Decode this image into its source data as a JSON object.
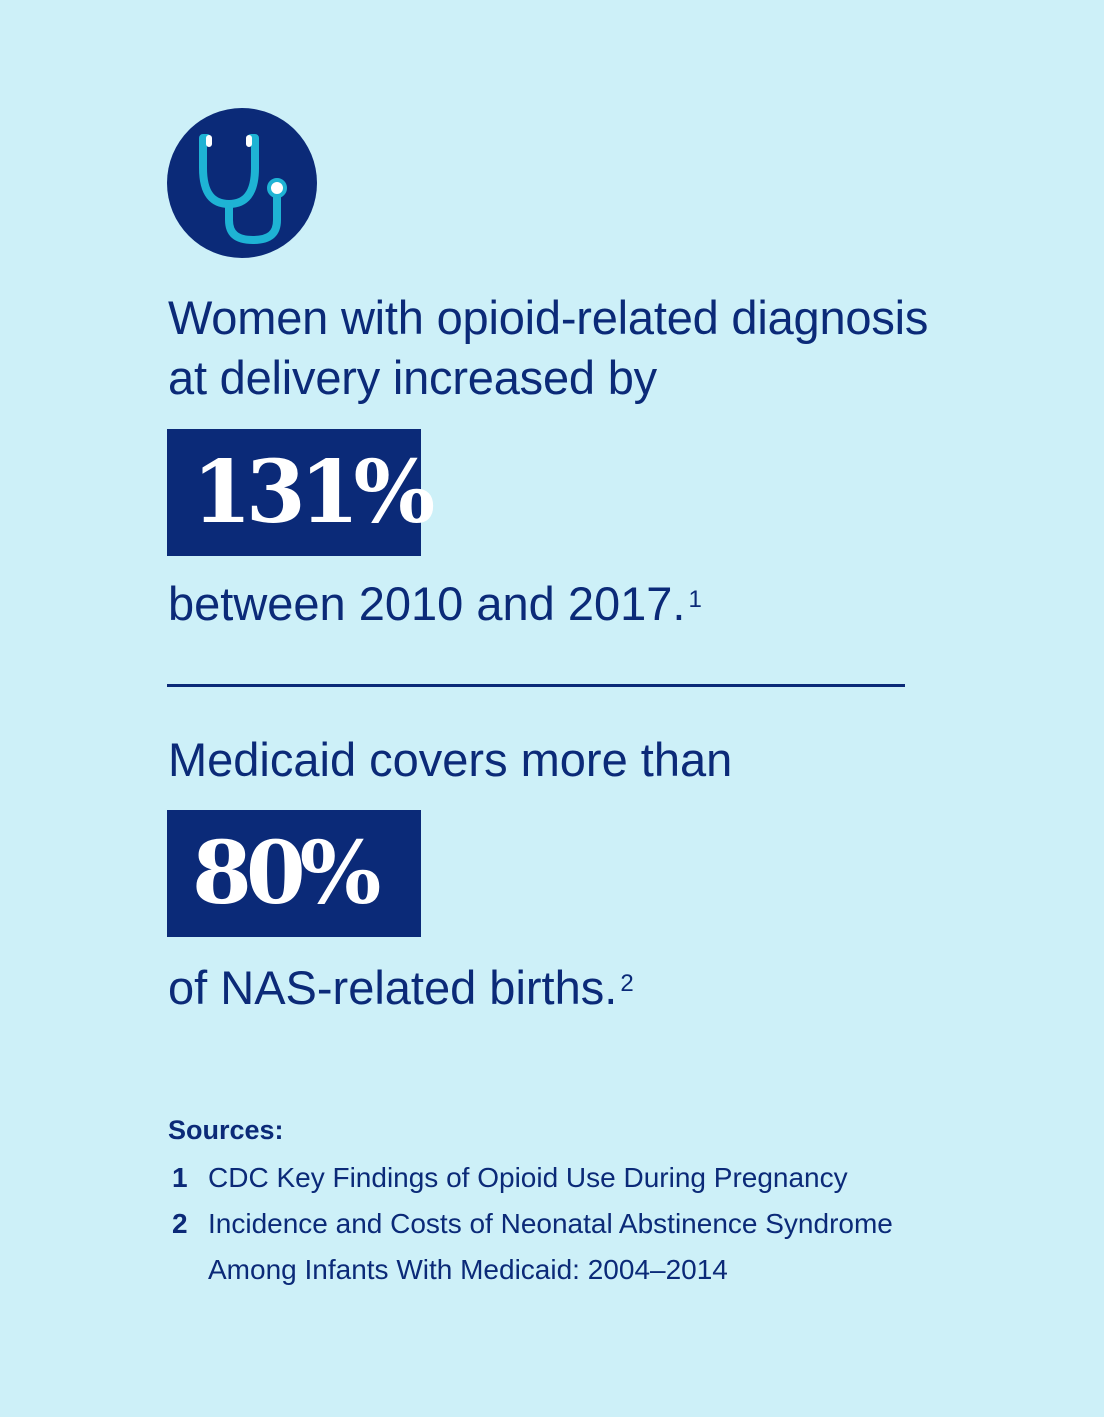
{
  "icon": {
    "name": "stethoscope-icon",
    "circle_color": "#0b2a78",
    "stroke_color": "#1eb3d4"
  },
  "stat_1": {
    "lead": "Women with opioid-related diagnosis at delivery increased by",
    "value": "131%",
    "trail": "between 2010 and 2017.",
    "footnote": "1"
  },
  "stat_2": {
    "lead": "Medicaid covers more than",
    "value": "80%",
    "trail": "of NAS-related births.",
    "footnote": "2"
  },
  "sources": {
    "heading": "Sources:",
    "items": [
      {
        "number": "1",
        "text": "CDC Key Findings of Opioid Use During Pregnancy"
      },
      {
        "number": "2",
        "text": "Incidence and Costs of Neonatal Abstinence Syndrome Among Infants With Medicaid: 2004–2014"
      }
    ]
  },
  "colors": {
    "background": "#cdf0f8",
    "navy": "#0b2a78",
    "accent": "#1eb3d4"
  }
}
